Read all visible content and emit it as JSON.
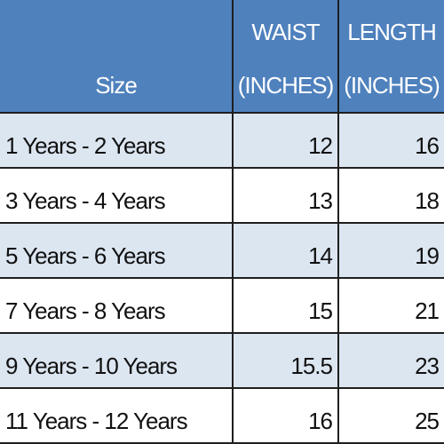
{
  "table": {
    "header": [
      "Size",
      "WAIST (INCHES)",
      "LENGTH (INCHES)"
    ],
    "rows": [
      [
        "1 Years - 2 Years",
        12,
        16
      ],
      [
        "3 Years - 4 Years",
        13,
        18
      ],
      [
        "5 Years - 6 Years",
        14,
        19
      ],
      [
        "7 Years - 8 Years",
        15,
        21
      ],
      [
        "9 Years - 10 Years",
        15.5,
        23
      ],
      [
        "11 Years - 12 Years",
        16,
        25
      ]
    ]
  }
}
